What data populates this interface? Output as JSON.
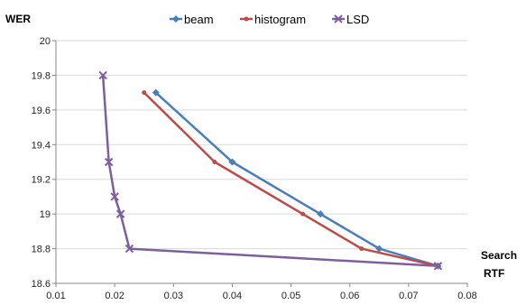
{
  "chart_data": {
    "type": "line",
    "ylabel": "WER",
    "xlabel_line1": "Search",
    "xlabel_line2": "RTF",
    "xlim": [
      0.01,
      0.08
    ],
    "ylim": [
      18.6,
      20
    ],
    "x_ticks": [
      "0.01",
      "0.02",
      "0.03",
      "0.04",
      "0.05",
      "0.06",
      "0.07",
      "0.08"
    ],
    "y_ticks": [
      "18.6",
      "18.8",
      "19",
      "19.2",
      "19.4",
      "19.6",
      "19.8",
      "20"
    ],
    "grid": "horizontal",
    "legend_position": "top",
    "series": [
      {
        "name": "beam",
        "color": "#4a7ebb",
        "marker": "diamond",
        "x": [
          0.027,
          0.04,
          0.055,
          0.065,
          0.075
        ],
        "y": [
          19.7,
          19.3,
          19.0,
          18.8,
          18.7
        ]
      },
      {
        "name": "histogram",
        "color": "#be4b48",
        "marker": "dot",
        "x": [
          0.025,
          0.037,
          0.052,
          0.062,
          0.075
        ],
        "y": [
          19.7,
          19.3,
          19.0,
          18.8,
          18.7
        ]
      },
      {
        "name": "LSD",
        "color": "#7d5fa0",
        "marker": "x",
        "x": [
          0.018,
          0.019,
          0.02,
          0.021,
          0.0225,
          0.075
        ],
        "y": [
          19.8,
          19.3,
          19.1,
          19.0,
          18.8,
          18.7
        ]
      }
    ]
  }
}
